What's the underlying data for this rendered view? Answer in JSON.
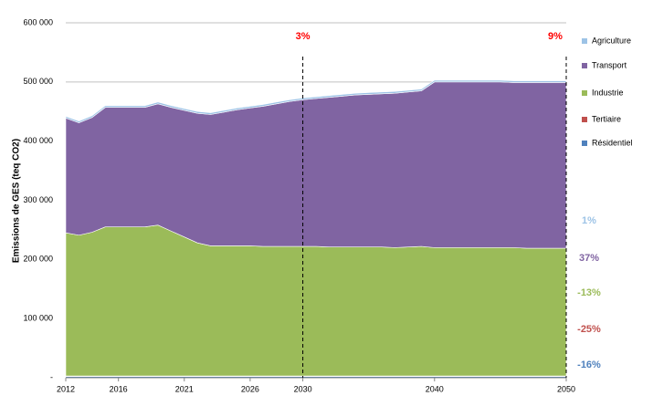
{
  "chart_data": {
    "type": "stacked-area",
    "y_label": "Emissions de GES (teq CO2)",
    "x": [
      2012,
      2013,
      2014,
      2015,
      2016,
      2017,
      2018,
      2019,
      2020,
      2021,
      2022,
      2023,
      2024,
      2025,
      2026,
      2027,
      2028,
      2029,
      2030,
      2031,
      2032,
      2033,
      2034,
      2035,
      2036,
      2037,
      2038,
      2039,
      2040,
      2041,
      2042,
      2043,
      2044,
      2045,
      2046,
      2047,
      2048,
      2049,
      2050
    ],
    "xlim": [
      2012,
      2050
    ],
    "xticks": [
      2012,
      2016,
      2021,
      2026,
      2030,
      2040,
      2050
    ],
    "ylim": [
      0,
      600000
    ],
    "yticks": [
      {
        "value": 0,
        "label": "-"
      },
      {
        "value": 100000,
        "label": "100 000"
      },
      {
        "value": 200000,
        "label": "200 000"
      },
      {
        "value": 300000,
        "label": "300 000"
      },
      {
        "value": 400000,
        "label": "400 000"
      },
      {
        "value": 500000,
        "label": "500 000"
      },
      {
        "value": 600000,
        "label": "600 000"
      }
    ],
    "grid": true,
    "series": [
      {
        "name": "Résidentiel",
        "color": "#4f81bd",
        "change_label": "-16%",
        "values": [
          2000,
          2000,
          2000,
          2000,
          2000,
          2000,
          2000,
          2000,
          2000,
          2000,
          2000,
          2000,
          2000,
          2000,
          2000,
          2000,
          2000,
          2000,
          2000,
          2000,
          2000,
          2000,
          2000,
          2000,
          2000,
          2000,
          2000,
          2000,
          2000,
          2000,
          2000,
          2000,
          2000,
          2000,
          2000,
          2000,
          2000,
          2000,
          2000
        ]
      },
      {
        "name": "Tertiaire",
        "color": "#c0504d",
        "change_label": "-25%",
        "values": [
          1000,
          1000,
          1000,
          1000,
          1000,
          1000,
          1000,
          1000,
          1000,
          1000,
          1000,
          1000,
          1000,
          1000,
          1000,
          1000,
          1000,
          1000,
          1000,
          1000,
          1000,
          1000,
          1000,
          1000,
          1000,
          1000,
          1000,
          1000,
          1000,
          1000,
          1000,
          1000,
          1000,
          1000,
          1000,
          1000,
          1000,
          1000,
          1000
        ]
      },
      {
        "name": "Industrie",
        "color": "#9bbb59",
        "change_label": "-13%",
        "values": [
          242000,
          238000,
          243000,
          252000,
          252000,
          252000,
          252000,
          255000,
          245000,
          235000,
          225000,
          220000,
          220000,
          220000,
          220000,
          219000,
          219000,
          219000,
          219000,
          219000,
          218000,
          218000,
          218000,
          218000,
          218000,
          217000,
          218000,
          219000,
          217000,
          217000,
          217000,
          217000,
          217000,
          217000,
          217000,
          216000,
          216000,
          216000,
          216000
        ]
      },
      {
        "name": "Transport",
        "color": "#8064a2",
        "change_label": "37%",
        "values": [
          194000,
          190000,
          194000,
          202000,
          202000,
          202000,
          202000,
          205000,
          209000,
          214000,
          219000,
          222000,
          226000,
          230000,
          233000,
          237000,
          241000,
          245000,
          248000,
          250000,
          253000,
          255000,
          257000,
          258000,
          259000,
          261000,
          262000,
          263000,
          280000,
          280000,
          280000,
          280000,
          280000,
          280000,
          279000,
          280000,
          280000,
          280000,
          280000
        ]
      },
      {
        "name": "Agriculture",
        "color": "#9dc3e6",
        "change_label": "1%",
        "values": [
          3000,
          3000,
          3000,
          3000,
          3000,
          3000,
          3000,
          3000,
          3000,
          3000,
          3000,
          3000,
          3000,
          3000,
          3000,
          3000,
          3000,
          3000,
          3000,
          3000,
          3000,
          3000,
          3000,
          3000,
          3000,
          3000,
          3000,
          3000,
          3000,
          3000,
          3000,
          3000,
          3000,
          3000,
          3000,
          3000,
          3000,
          3000,
          3000
        ]
      }
    ],
    "annotations": [
      {
        "text": "3%",
        "x": 2030,
        "color": "#ff0000"
      },
      {
        "text": "9%",
        "x": 2050,
        "color": "#ff0000"
      }
    ]
  }
}
